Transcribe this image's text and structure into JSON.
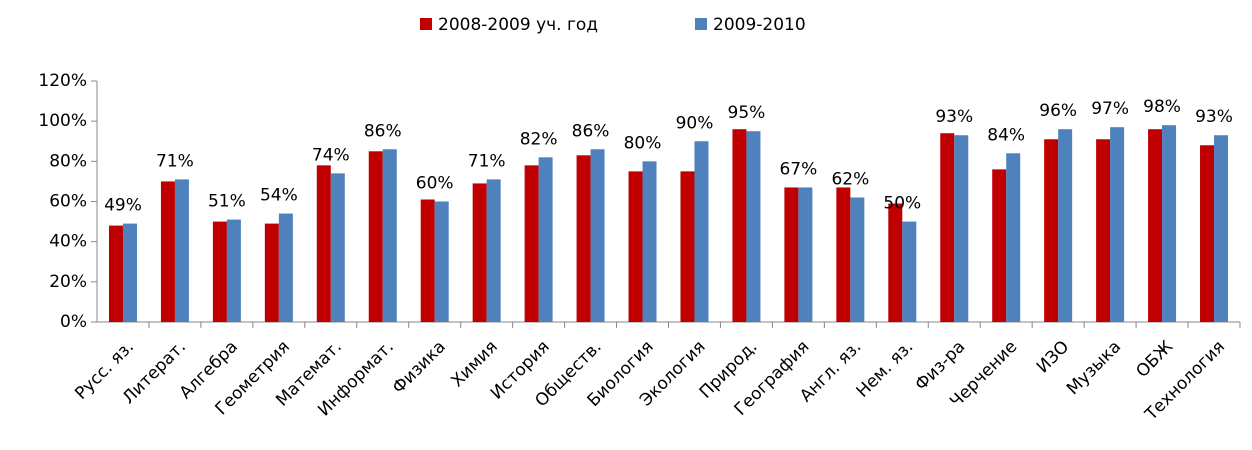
{
  "chart_data": {
    "type": "bar",
    "categories": [
      "Русс. яз.",
      "Литерат.",
      "Алгебра",
      "Геометрия",
      "Математ.",
      "Информат.",
      "Физика",
      "Химия",
      "История",
      "Обществ.",
      "Биология",
      "Экология",
      "Природ.",
      "География",
      "Англ. яз.",
      "Нем. яз.",
      "Физ-ра",
      "Черчение",
      "ИЗО",
      "Музыка",
      "ОБЖ",
      "Технология"
    ],
    "series": [
      {
        "name": "2008-2009 уч. год",
        "color": "#c00000",
        "values": [
          48,
          70,
          50,
          49,
          78,
          85,
          61,
          69,
          78,
          83,
          75,
          75,
          96,
          67,
          67,
          59,
          94,
          76,
          91,
          91,
          96,
          88
        ]
      },
      {
        "name": "2009-2010",
        "color": "#4f81bd",
        "values": [
          49,
          71,
          51,
          54,
          74,
          86,
          60,
          71,
          82,
          86,
          80,
          90,
          95,
          67,
          62,
          50,
          93,
          84,
          96,
          97,
          98,
          93
        ],
        "value_labels": [
          "49%",
          "71%",
          "51%",
          "54%",
          "74%",
          "86%",
          "60%",
          "71%",
          "82%",
          "86%",
          "80%",
          "90%",
          "95%",
          "67%",
          "62%",
          "50%",
          "93%",
          "84%",
          "96%",
          "97%",
          "98%",
          "93%"
        ]
      }
    ],
    "ylim": [
      0,
      120
    ],
    "yticks": [
      {
        "value": 0,
        "label": "0%"
      },
      {
        "value": 20,
        "label": "20%"
      },
      {
        "value": 40,
        "label": "40%"
      },
      {
        "value": 60,
        "label": "60%"
      },
      {
        "value": 80,
        "label": "80%"
      },
      {
        "value": 100,
        "label": "100%"
      },
      {
        "value": 120,
        "label": "120%"
      }
    ],
    "legend": "top"
  }
}
